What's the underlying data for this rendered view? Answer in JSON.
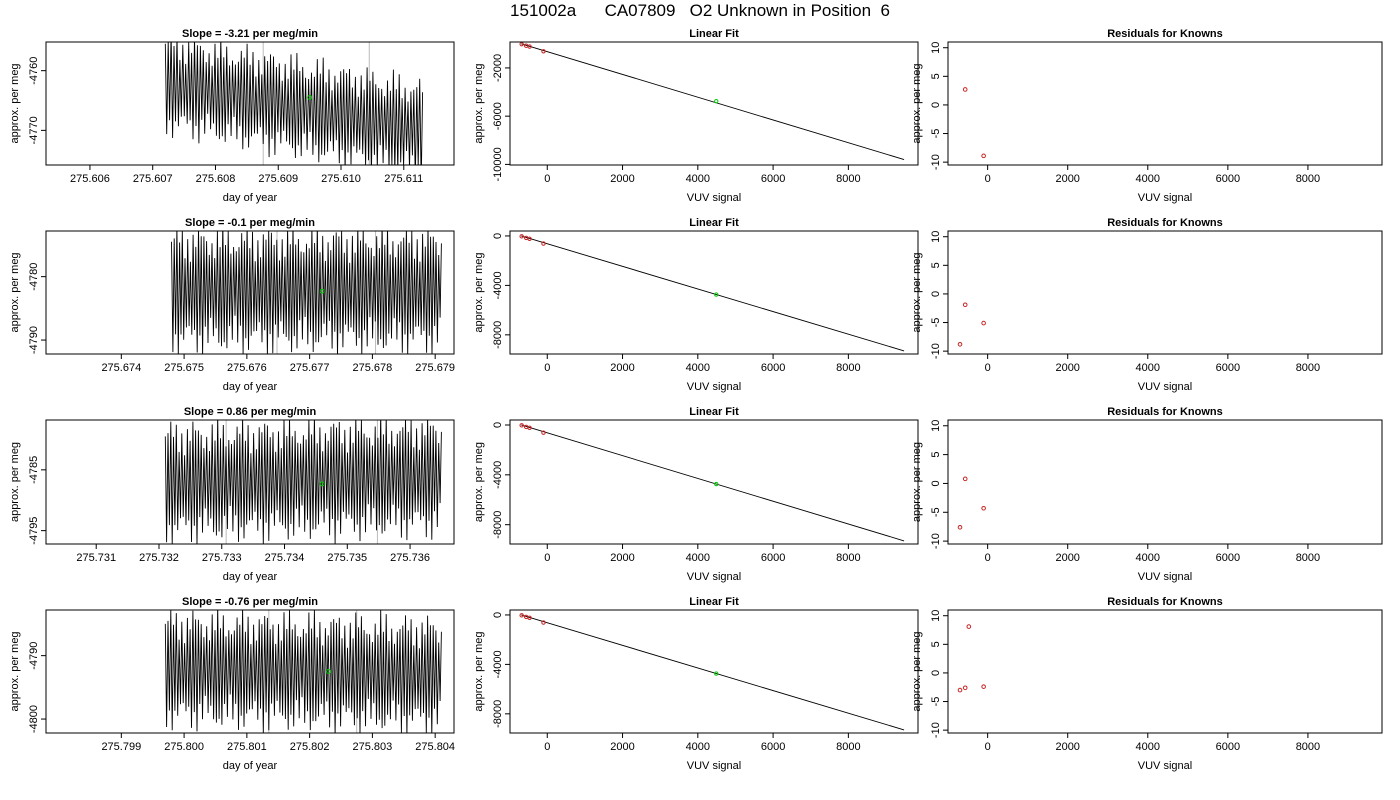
{
  "title": {
    "id": "151002a",
    "cylinder": "CA07809",
    "label": "O2 Unknown in Position  6"
  },
  "colors": {
    "trace": "#000000",
    "marker_unknown": "#00cc00",
    "marker_known": "#cc2222",
    "frame": "#000000",
    "gray_lines": "#bbbbbb"
  },
  "chart_data": [
    {
      "row": 1,
      "panel": "trace",
      "type": "line",
      "title": "Slope =  -3.21  per meg/min",
      "xlabel": "day of year",
      "ylabel": "approx. per meg",
      "xlim": [
        275.6053,
        275.6118
      ],
      "ylim": [
        -4775.8,
        -4755.2
      ],
      "xticks": [
        275.606,
        275.607,
        275.608,
        275.609,
        275.61,
        275.611
      ],
      "yticks": [
        -4760,
        -4770
      ],
      "x_start": 275.6072,
      "x_end": 275.6113,
      "center_start": -4762,
      "center_end": -4770,
      "amplitude": 6.5,
      "cycles": 88,
      "unknown_point": [
        275.6095,
        -4764.5
      ],
      "gray_lines_x": [
        275.60876,
        275.61045
      ]
    },
    {
      "row": 1,
      "panel": "fit",
      "type": "scatter",
      "title": "Linear Fit",
      "xlabel": "VUV signal",
      "ylabel": "approx. per meg",
      "xlim": [
        -990,
        9850
      ],
      "ylim": [
        -10050,
        150
      ],
      "xticks": [
        0,
        2000,
        4000,
        6000,
        8000
      ],
      "yticks": [
        -2000,
        -6000,
        -10000
      ],
      "fit_line": [
        [
          -690,
          0
        ],
        [
          9480,
          -9600
        ]
      ],
      "known_points": [
        [
          -680,
          -30
        ],
        [
          -560,
          -160
        ],
        [
          -470,
          -230
        ],
        [
          -100,
          -620
        ]
      ],
      "unknown_point": [
        4490,
        -4760
      ]
    },
    {
      "row": 1,
      "panel": "residuals",
      "type": "scatter",
      "title": "Residuals for Knowns",
      "xlabel": "VUV signal",
      "ylabel": "approx. per meg",
      "xlim": [
        -990,
        9850
      ],
      "ylim": [
        -10.5,
        11
      ],
      "xticks": [
        0,
        2000,
        4000,
        6000,
        8000
      ],
      "yticks": [
        10,
        5,
        0,
        -5,
        -10
      ],
      "points": [
        [
          -560,
          2.7
        ],
        [
          -100,
          -8.9
        ]
      ]
    },
    {
      "row": 2,
      "panel": "trace",
      "type": "line",
      "title": "Slope =  -0.1  per meg/min",
      "xlabel": "day of year",
      "ylabel": "approx. per meg",
      "xlim": [
        275.6728,
        275.6793
      ],
      "ylim": [
        -4792.2,
        -4772.8
      ],
      "xticks": [
        275.674,
        275.675,
        275.676,
        275.677,
        275.678,
        275.679
      ],
      "yticks": [
        -4780,
        -4790
      ],
      "x_start": 275.6748,
      "x_end": 275.6791,
      "center_start": -4782,
      "center_end": -4782,
      "amplitude": 7.5,
      "cycles": 100,
      "unknown_point": [
        275.6772,
        -4782.3
      ],
      "gray_lines_x": [
        275.67648,
        275.67805
      ]
    },
    {
      "row": 2,
      "panel": "fit",
      "type": "scatter",
      "title": "Linear Fit",
      "xlabel": "VUV signal",
      "ylabel": "approx. per meg",
      "xlim": [
        -990,
        9850
      ],
      "ylim": [
        -9550,
        400
      ],
      "xticks": [
        0,
        2000,
        4000,
        6000,
        8000
      ],
      "yticks": [
        0,
        -4000,
        -8000
      ],
      "fit_line": [
        [
          -690,
          0
        ],
        [
          9480,
          -9300
        ]
      ],
      "known_points": [
        [
          -680,
          -30
        ],
        [
          -560,
          -160
        ],
        [
          -470,
          -230
        ],
        [
          -100,
          -620
        ]
      ],
      "unknown_point": [
        4490,
        -4740
      ]
    },
    {
      "row": 2,
      "panel": "residuals",
      "type": "scatter",
      "title": "Residuals for Knowns",
      "xlabel": "VUV signal",
      "ylabel": "approx. per meg",
      "xlim": [
        -990,
        9850
      ],
      "ylim": [
        -10.5,
        11
      ],
      "xticks": [
        0,
        2000,
        4000,
        6000,
        8000
      ],
      "yticks": [
        10,
        5,
        0,
        -5,
        -10
      ],
      "points": [
        [
          -690,
          -8.8
        ],
        [
          -560,
          -1.9
        ],
        [
          -100,
          -5.1
        ]
      ]
    },
    {
      "row": 3,
      "panel": "trace",
      "type": "line",
      "title": "Slope =  0.86  per meg/min",
      "xlabel": "day of year",
      "ylabel": "approx. per meg",
      "xlim": [
        275.7302,
        275.7367
      ],
      "ylim": [
        -4797.2,
        -4776.8
      ],
      "xticks": [
        275.731,
        275.732,
        275.733,
        275.734,
        275.735,
        275.736
      ],
      "yticks": [
        -4785,
        -4795
      ],
      "x_start": 275.7321,
      "x_end": 275.7365,
      "center_start": -4787,
      "center_end": -4786,
      "amplitude": 7.5,
      "cycles": 100,
      "unknown_point": [
        275.7346,
        -4787.3
      ],
      "gray_lines_x": [
        275.73307,
        275.73548
      ]
    },
    {
      "row": 3,
      "panel": "fit",
      "type": "scatter",
      "title": "Linear Fit",
      "xlabel": "VUV signal",
      "ylabel": "approx. per meg",
      "xlim": [
        -990,
        9850
      ],
      "ylim": [
        -9550,
        400
      ],
      "xticks": [
        0,
        2000,
        4000,
        6000,
        8000
      ],
      "yticks": [
        0,
        -4000,
        -8000
      ],
      "fit_line": [
        [
          -690,
          0
        ],
        [
          9480,
          -9300
        ]
      ],
      "known_points": [
        [
          -680,
          -30
        ],
        [
          -560,
          -160
        ],
        [
          -470,
          -230
        ],
        [
          -100,
          -620
        ]
      ],
      "unknown_point": [
        4490,
        -4740
      ]
    },
    {
      "row": 3,
      "panel": "residuals",
      "type": "scatter",
      "title": "Residuals for Knowns",
      "xlabel": "VUV signal",
      "ylabel": "approx. per meg",
      "xlim": [
        -990,
        9850
      ],
      "ylim": [
        -10.5,
        11
      ],
      "xticks": [
        0,
        2000,
        4000,
        6000,
        8000
      ],
      "yticks": [
        10,
        5,
        0,
        -5,
        -10
      ],
      "points": [
        [
          -690,
          -7.6
        ],
        [
          -560,
          0.8
        ],
        [
          -100,
          -4.3
        ]
      ]
    },
    {
      "row": 4,
      "panel": "trace",
      "type": "line",
      "title": "Slope =  -0.76  per meg/min",
      "xlabel": "day of year",
      "ylabel": "approx. per meg",
      "xlim": [
        275.7978,
        275.8043
      ],
      "ylim": [
        -4802.2,
        -4782.8
      ],
      "xticks": [
        275.799,
        275.8,
        275.801,
        275.802,
        275.803,
        275.804
      ],
      "yticks": [
        -4790,
        -4800
      ],
      "x_start": 275.7997,
      "x_end": 275.8041,
      "center_start": -4792,
      "center_end": -4793,
      "amplitude": 7,
      "cycles": 100,
      "unknown_point": [
        275.8023,
        -4792.5
      ],
      "gray_lines_x": [
        275.80135,
        275.80275
      ]
    },
    {
      "row": 4,
      "panel": "fit",
      "type": "scatter",
      "title": "Linear Fit",
      "xlabel": "VUV signal",
      "ylabel": "approx. per meg",
      "xlim": [
        -990,
        9850
      ],
      "ylim": [
        -9550,
        400
      ],
      "xticks": [
        0,
        2000,
        4000,
        6000,
        8000
      ],
      "yticks": [
        0,
        -4000,
        -8000
      ],
      "fit_line": [
        [
          -690,
          0
        ],
        [
          9480,
          -9300
        ]
      ],
      "known_points": [
        [
          -680,
          -30
        ],
        [
          -560,
          -160
        ],
        [
          -470,
          -230
        ],
        [
          -100,
          -620
        ]
      ],
      "unknown_point": [
        4490,
        -4740
      ]
    },
    {
      "row": 4,
      "panel": "residuals",
      "type": "scatter",
      "title": "Residuals for Knowns",
      "xlabel": "VUV signal",
      "ylabel": "approx. per meg",
      "xlim": [
        -990,
        9850
      ],
      "ylim": [
        -10.5,
        11
      ],
      "xticks": [
        0,
        2000,
        4000,
        6000,
        8000
      ],
      "yticks": [
        10,
        5,
        0,
        -5,
        -10
      ],
      "points": [
        [
          -690,
          -3.0
        ],
        [
          -560,
          -2.6
        ],
        [
          -470,
          8.1
        ],
        [
          -100,
          -2.4
        ]
      ]
    }
  ]
}
